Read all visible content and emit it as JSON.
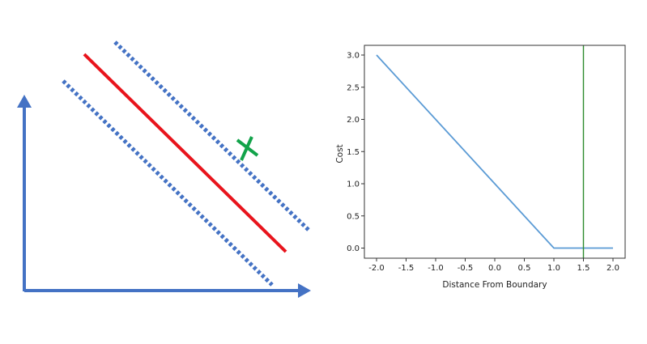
{
  "diagram": {
    "colors": {
      "axes": "#4472C4",
      "margins": "#4472C4",
      "boundary": "#E8141C",
      "marker": "#12A34A"
    },
    "marker_icon": "x-mark-icon"
  },
  "chart_data": {
    "type": "line",
    "xlabel": "Distance From Boundary",
    "ylabel": "Cost",
    "xlim": [
      -2.0,
      2.0
    ],
    "ylim": [
      0.0,
      3.0
    ],
    "xticks": [
      "-2.0",
      "-1.5",
      "-1.0",
      "-0.5",
      "0.0",
      "0.5",
      "1.0",
      "1.5",
      "2.0"
    ],
    "yticks": [
      "0.0",
      "0.5",
      "1.0",
      "1.5",
      "2.0",
      "2.5",
      "3.0"
    ],
    "grid": false,
    "series": [
      {
        "x": [
          -2.0,
          1.0,
          2.0
        ],
        "y": [
          3.0,
          0.0,
          0.0
        ],
        "color": "#5B9BD5"
      }
    ],
    "vertical_line": {
      "x": 1.5,
      "color": "#2E8B2E"
    }
  }
}
